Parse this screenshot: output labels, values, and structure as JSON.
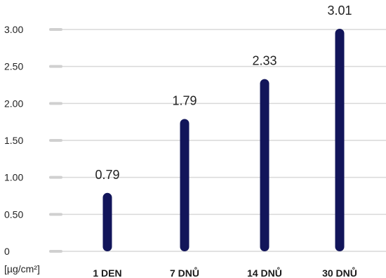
{
  "chart_data": {
    "type": "bar",
    "categories": [
      "1 DEN",
      "7 DNŮ",
      "14 DNŮ",
      "30 DNŮ"
    ],
    "values": [
      0.79,
      1.79,
      2.33,
      3.01
    ],
    "value_labels": [
      "0.79",
      "1.79",
      "2.33",
      "3.01"
    ],
    "ylim": [
      0,
      3
    ],
    "yticks": [
      0,
      0.5,
      1,
      1.5,
      2,
      2.5,
      3
    ],
    "ytick_labels": [
      "0",
      "0.50",
      "1.00",
      "1.50",
      "2.00",
      "2.50",
      "3.00"
    ],
    "unit_label": "[µg/cm²]",
    "grid": true,
    "colors": {
      "bar": "#12155a",
      "grid": "#d9d9d9",
      "tick_mark": "#d0d0d0"
    }
  }
}
